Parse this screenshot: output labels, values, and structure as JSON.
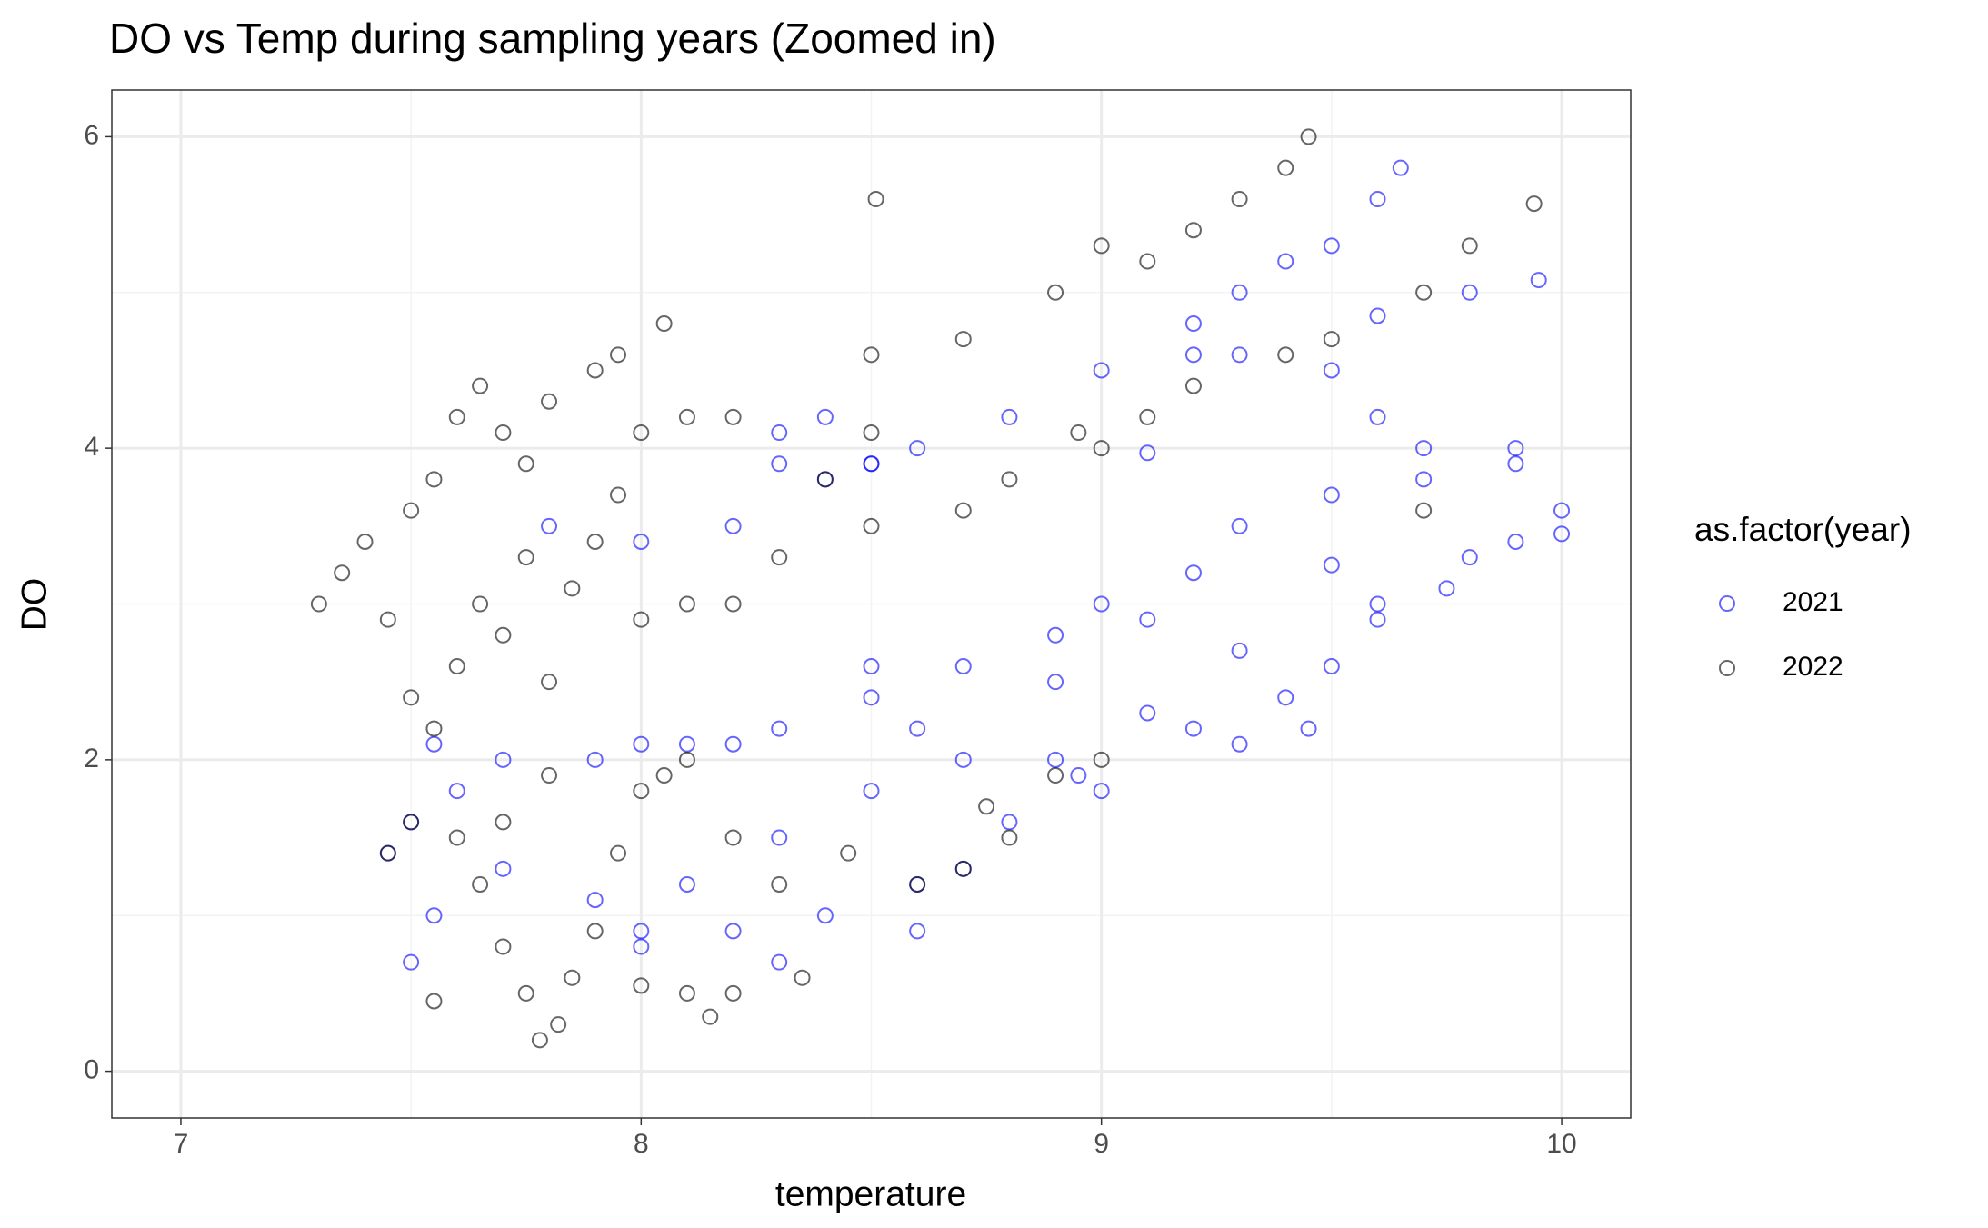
{
  "chart_data": {
    "type": "scatter",
    "title": "DO vs Temp during sampling years (Zoomed in)",
    "x_label": "temperature",
    "y_label": "DO",
    "legend_title": "as.factor(year)",
    "xlim": [
      6.85,
      10.15
    ],
    "ylim": [
      -0.3,
      6.3
    ],
    "xticks": [
      7,
      8,
      9,
      10
    ],
    "yticks": [
      0,
      2,
      4,
      6
    ],
    "xminor": [
      7.5,
      8.5,
      9.5
    ],
    "yminor": [
      1,
      3,
      5
    ],
    "grid": true,
    "legend_position": "right",
    "series": [
      {
        "name": "2021",
        "color": "#0000ff",
        "x": [
          8.6,
          8.8,
          9.0,
          9.2,
          9.3,
          9.4,
          9.5,
          9.6,
          9.65,
          9.2,
          9.3,
          9.6,
          9.8,
          9.95,
          8.4,
          8.5,
          9.1,
          9.5,
          9.6,
          9.0,
          9.2,
          9.3,
          9.5,
          9.7,
          9.9,
          10.0,
          9.8,
          9.6,
          9.5,
          9.4,
          9.3,
          9.1,
          8.9,
          8.7,
          8.5,
          8.3,
          8.2,
          8.5,
          8.9,
          9.2,
          9.3,
          9.6,
          9.9,
          10.0,
          9.45,
          8.8,
          8.7,
          8.6,
          8.4,
          8.2,
          8.0,
          8.1,
          8.3,
          8.5,
          8.7,
          8.9,
          9.1,
          8.6,
          8.3,
          8.0,
          7.9,
          7.7,
          7.5,
          7.45,
          7.5,
          7.55,
          7.6,
          7.55,
          7.7,
          7.9,
          8.0,
          8.1,
          7.8,
          8.0,
          8.2,
          8.3,
          8.4,
          8.5,
          8.3,
          8.6,
          9.0,
          8.95,
          9.75,
          9.5,
          9.7,
          9.9
        ],
        "values": [
          4.0,
          4.2,
          4.5,
          4.8,
          5.0,
          5.2,
          5.3,
          5.6,
          5.8,
          4.6,
          4.6,
          4.85,
          5.0,
          5.08,
          4.2,
          3.9,
          3.97,
          4.5,
          4.2,
          3.0,
          3.2,
          3.5,
          3.7,
          3.8,
          3.9,
          3.6,
          3.3,
          3.0,
          2.6,
          2.4,
          2.7,
          2.9,
          2.8,
          2.6,
          2.4,
          2.2,
          2.1,
          2.6,
          2.5,
          2.2,
          2.1,
          2.9,
          3.4,
          3.45,
          2.2,
          1.6,
          1.3,
          1.2,
          1.0,
          0.9,
          0.8,
          1.2,
          1.5,
          1.8,
          2.0,
          2.0,
          2.3,
          0.9,
          0.7,
          0.9,
          1.1,
          1.3,
          1.6,
          1.4,
          0.7,
          1.0,
          1.8,
          2.1,
          2.0,
          2.0,
          2.1,
          2.1,
          3.5,
          3.4,
          3.5,
          3.9,
          3.8,
          3.9,
          4.1,
          2.2,
          1.8,
          1.9,
          3.1,
          3.25,
          4.0,
          4.0
        ]
      },
      {
        "name": "2022",
        "color": "#000000",
        "x": [
          7.3,
          7.35,
          7.4,
          7.5,
          7.55,
          7.6,
          7.65,
          7.7,
          7.75,
          7.8,
          7.9,
          7.95,
          8.05,
          7.45,
          7.5,
          7.55,
          7.6,
          7.65,
          7.7,
          7.75,
          7.8,
          7.85,
          7.9,
          7.95,
          8.0,
          8.1,
          7.45,
          7.5,
          7.6,
          7.65,
          7.7,
          7.75,
          7.78,
          7.82,
          7.85,
          7.9,
          7.95,
          8.0,
          8.05,
          7.55,
          7.7,
          7.8,
          8.1,
          8.2,
          8.3,
          8.35,
          8.2,
          8.15,
          8.1,
          8.0,
          8.45,
          8.6,
          8.7,
          8.75,
          8.9,
          9.0,
          8.8,
          8.0,
          8.2,
          8.3,
          8.5,
          8.7,
          8.8,
          9.0,
          8.4,
          8.5,
          8.2,
          8.1,
          8.5,
          8.7,
          8.9,
          9.1,
          9.2,
          9.3,
          9.4,
          9.45,
          8.51,
          9.0,
          9.7,
          9.8,
          9.94,
          9.5,
          9.4,
          9.2,
          9.1,
          8.95,
          9.7
        ],
        "values": [
          3.0,
          3.2,
          3.4,
          3.6,
          3.8,
          4.2,
          4.4,
          4.1,
          3.9,
          4.3,
          4.5,
          4.6,
          4.8,
          2.9,
          2.4,
          2.2,
          2.6,
          3.0,
          2.8,
          3.3,
          2.5,
          3.1,
          3.4,
          3.7,
          4.1,
          4.2,
          1.4,
          1.6,
          1.5,
          1.2,
          0.8,
          0.5,
          0.2,
          0.3,
          0.6,
          0.9,
          1.4,
          1.8,
          1.9,
          0.45,
          1.6,
          1.9,
          2.0,
          1.5,
          1.2,
          0.6,
          0.5,
          0.35,
          0.5,
          0.55,
          1.4,
          1.2,
          1.3,
          1.7,
          1.9,
          2.0,
          1.5,
          2.9,
          3.0,
          3.3,
          3.5,
          3.6,
          3.8,
          4.0,
          3.8,
          4.1,
          4.2,
          3.0,
          4.6,
          4.7,
          5.0,
          5.2,
          5.4,
          5.6,
          5.8,
          6.0,
          5.6,
          5.3,
          5.0,
          5.3,
          5.57,
          4.7,
          4.6,
          4.4,
          4.2,
          4.1,
          3.6
        ]
      }
    ]
  }
}
